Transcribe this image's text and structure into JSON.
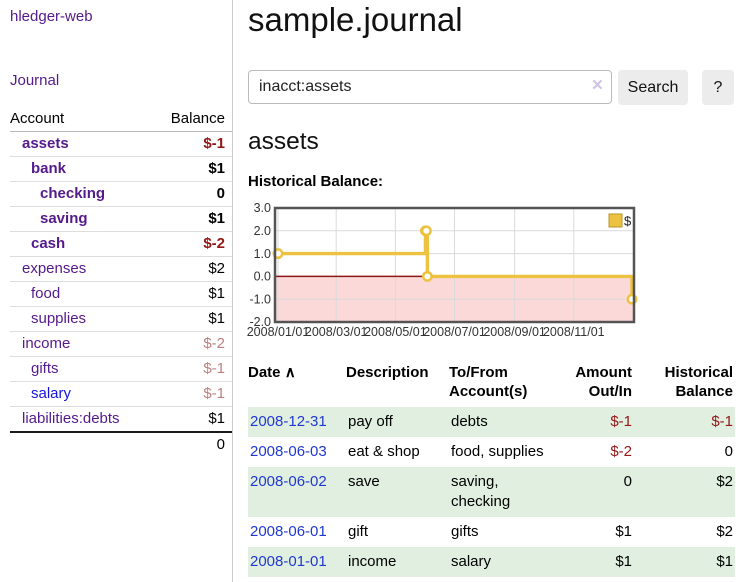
{
  "app": {
    "title": "hledger-web"
  },
  "sidebar": {
    "journal_link": "Journal",
    "header": {
      "account": "Account",
      "balance": "Balance"
    },
    "accounts": [
      {
        "name": "assets",
        "depth": 1,
        "current_path": true,
        "balance": "$-1",
        "negative": true
      },
      {
        "name": "bank",
        "depth": 2,
        "current_path": true,
        "balance": "$1",
        "negative": false
      },
      {
        "name": "checking",
        "depth": 3,
        "current_path": true,
        "balance": "0",
        "negative": false
      },
      {
        "name": "saving",
        "depth": 3,
        "current_path": true,
        "balance": "$1",
        "negative": false
      },
      {
        "name": "cash",
        "depth": 2,
        "current_path": true,
        "balance": "$-2",
        "negative": true
      },
      {
        "name": "expenses",
        "depth": 1,
        "current_path": false,
        "balance": "$2",
        "negative": false
      },
      {
        "name": "food",
        "depth": 2,
        "current_path": false,
        "balance": "$1",
        "negative": false
      },
      {
        "name": "supplies",
        "depth": 2,
        "current_path": false,
        "balance": "$1",
        "negative": false
      },
      {
        "name": "income",
        "depth": 1,
        "current_path": false,
        "balance": "$-2",
        "negative": true
      },
      {
        "name": "gifts",
        "depth": 2,
        "current_path": false,
        "balance": "$-1",
        "negative": true
      },
      {
        "name": "salary",
        "depth": 2,
        "current_path": false,
        "balance": "$-1",
        "negative": true,
        "link_state": "unvisited"
      },
      {
        "name": "liabilities:debts",
        "depth": 1,
        "current_path": false,
        "balance": "$1",
        "negative": false
      }
    ],
    "total": "0"
  },
  "main": {
    "title": "sample.journal",
    "search": {
      "value": "inacct:assets",
      "clear_icon": "×",
      "button_label": "Search",
      "help_label": "?"
    },
    "account_heading": "assets",
    "chart_label": "Historical Balance:"
  },
  "chart_data": {
    "type": "line",
    "step": true,
    "title": "Historical Balance",
    "series": [
      {
        "name": "$",
        "color": "#edc240",
        "points": [
          [
            "2008-01-01",
            1
          ],
          [
            "2008-06-01",
            2
          ],
          [
            "2008-06-02",
            2
          ],
          [
            "2008-06-03",
            0
          ],
          [
            "2008-12-31",
            -1
          ]
        ]
      }
    ],
    "ylim": [
      -2,
      3
    ],
    "yticks": [
      3,
      2,
      1,
      0,
      -1,
      -2
    ],
    "ytick_labels": [
      "3.0",
      "2.0",
      "1.0",
      "0.0",
      "-1.0",
      "-2.0"
    ],
    "xrange": [
      "2008-01-01",
      "2008-12-31"
    ],
    "xticks": [
      {
        "date": "2008-01-01",
        "label": "2008/01/01"
      },
      {
        "date": "2008-03-01",
        "label": "2008/03/01"
      },
      {
        "date": "2008-05-01",
        "label": "2008/05/01"
      },
      {
        "date": "2008-07-01",
        "label": "2008/07/01"
      },
      {
        "date": "2008-09-01",
        "label": "2008/09/01"
      },
      {
        "date": "2008-11-01",
        "label": "2008/11/01"
      }
    ],
    "grid": true,
    "legend_position": "top-right",
    "below_zero_fill": "#fbd9d9",
    "zero_line_color": "#8b1717",
    "gridline_color": "#dadada",
    "border_color": "#545454"
  },
  "table": {
    "headers": [
      {
        "label": "Date",
        "sort_icon": "∧"
      },
      {
        "label": "Description"
      },
      {
        "label": "To/From\nAccount(s)"
      },
      {
        "label": "Amount\nOut/In"
      },
      {
        "label": "Historical\nBalance"
      }
    ],
    "row_highlight_color": "#e1efe0",
    "rows": [
      {
        "date": "2008-12-31",
        "description": "pay off",
        "accounts": "debts",
        "amount": "$-1",
        "amount_negative": true,
        "balance": "$-1",
        "balance_negative": true
      },
      {
        "date": "2008-06-03",
        "description": "eat & shop",
        "accounts": "food, supplies",
        "amount": "$-2",
        "amount_negative": true,
        "balance": "0",
        "balance_negative": false
      },
      {
        "date": "2008-06-02",
        "description": "save",
        "accounts": "saving, checking",
        "amount": "0",
        "amount_negative": false,
        "balance": "$2",
        "balance_negative": false
      },
      {
        "date": "2008-06-01",
        "description": "gift",
        "accounts": "gifts",
        "amount": "$1",
        "amount_negative": false,
        "balance": "$2",
        "balance_negative": false
      },
      {
        "date": "2008-01-01",
        "description": "income",
        "accounts": "salary",
        "amount": "$1",
        "amount_negative": false,
        "balance": "$1",
        "balance_negative": false
      }
    ]
  }
}
